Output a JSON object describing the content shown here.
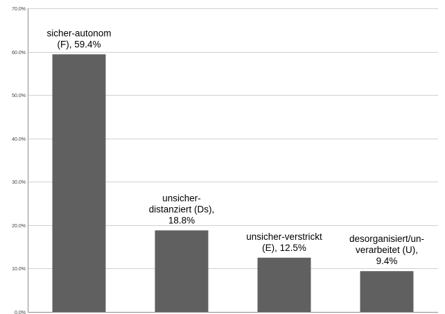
{
  "chart_data": {
    "type": "bar",
    "categories": [
      "sicher-autonom (F)",
      "unsicher-distanziert (Ds)",
      "unsicher-verstrickt (E)",
      "desorganisiert/un-verarbeitet (U)"
    ],
    "values": [
      59.4,
      18.8,
      12.5,
      9.4
    ],
    "data_labels": [
      [
        "sicher-autonom",
        "(F), 59.4%"
      ],
      [
        "unsicher-",
        "distanziert (Ds),",
        "18.8%"
      ],
      [
        "unsicher-verstrickt",
        "(E), 12.5%"
      ],
      [
        "desorganisiert/un-",
        "verarbeitet (U),",
        "9.4%"
      ]
    ],
    "y_ticks": [
      "0.0%",
      "10.0%",
      "20.0%",
      "30.0%",
      "40.0%",
      "50.0%",
      "60.0%",
      "70.0%"
    ],
    "ylim": [
      0,
      70
    ],
    "grid": true,
    "legend": "none",
    "bar_color": "#606060",
    "title": "",
    "xlabel": "",
    "ylabel": ""
  }
}
